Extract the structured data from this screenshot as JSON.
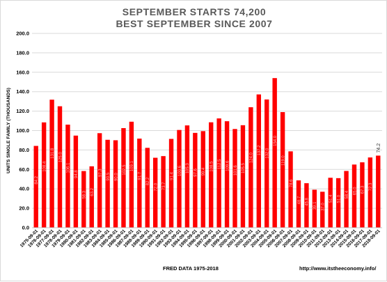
{
  "chart_data": {
    "type": "bar",
    "title": "SEPTEMBER STARTS 74,200",
    "subtitle": "BEST SEPTEMBER SINCE 2007",
    "ylabel": "UNITS SINGLE FAMILY (THOUSANDS)",
    "xlabel": "",
    "ylim": [
      0,
      200
    ],
    "yticks": [
      "0.0",
      "20.0",
      "40.0",
      "60.0",
      "80.0",
      "100.0",
      "120.0",
      "140.0",
      "160.0",
      "180.0",
      "200.0"
    ],
    "grid": true,
    "legend": "none",
    "bar_color": "#ff0000",
    "categories": [
      "1975-09-01",
      "1976-09-01",
      "1977-09-01",
      "1978-09-01",
      "1979-09-01",
      "1980-09-01",
      "1981-09-01",
      "1982-09-01",
      "1983-09-01",
      "1984-09-01",
      "1985-09-01",
      "1986-09-01",
      "1987-09-01",
      "1988-09-01",
      "1989-09-01",
      "1990-09-01",
      "1991-09-01",
      "1992-09-01",
      "1993-09-01",
      "1994-09-01",
      "1995-09-01",
      "1996-09-01",
      "1997-09-01",
      "1998-09-01",
      "1999-09-01",
      "2000-09-01",
      "2001-09-01",
      "2002-09-01",
      "2003-09-01",
      "2004-09-01",
      "2005-09-01",
      "2006-09-01",
      "2007-09-01",
      "2008-09-01",
      "2009-09-01",
      "2010-09-01",
      "2011-09-01",
      "2012-09-01",
      "2013-09-01",
      "2014-09-01",
      "2015-09-01",
      "2016-09-01",
      "2017-09-01",
      "2018-09-01"
    ],
    "values": [
      84.2,
      108.4,
      131.8,
      125.0,
      106.1,
      94.8,
      58.3,
      63.2,
      97.3,
      90.5,
      90.0,
      102.5,
      109.1,
      91.7,
      82.2,
      72.0,
      73.7,
      91.4,
      100.6,
      105.3,
      97.6,
      99.4,
      108.5,
      112.5,
      109.6,
      101.6,
      105.5,
      124.0,
      137.2,
      132.0,
      154.0,
      119.0,
      78.6,
      48.7,
      45.8,
      39.1,
      37.0,
      51.4,
      51.0,
      58.4,
      65.0,
      67.3,
      72.3,
      74.2
    ],
    "value_labels": [
      "84.2",
      "108.4",
      "131.8",
      "125.0",
      "106.1",
      "94.8",
      "58.3",
      "63.2",
      "97.3",
      "90.5",
      "90.0",
      "102.5",
      "109.1",
      "91.7",
      "82.2",
      "72.0",
      "73.7",
      "91.4",
      "100.6",
      "105.3",
      "97.6",
      "99.4",
      "108.5",
      "112.5",
      "109.6",
      "101.6",
      "105.5",
      "124.0",
      "137.2",
      "132.0",
      "154.0",
      "119.0",
      "78.6",
      "48.7",
      "45.8",
      "39.1",
      "37.0",
      "51.4",
      "51.0",
      "58.4",
      "65.0",
      "67.3",
      "72.3",
      "74.2"
    ]
  },
  "footer": {
    "source": "FRED  DATA 1975-2018",
    "site": "http://www.itstheeconomy.info/"
  }
}
